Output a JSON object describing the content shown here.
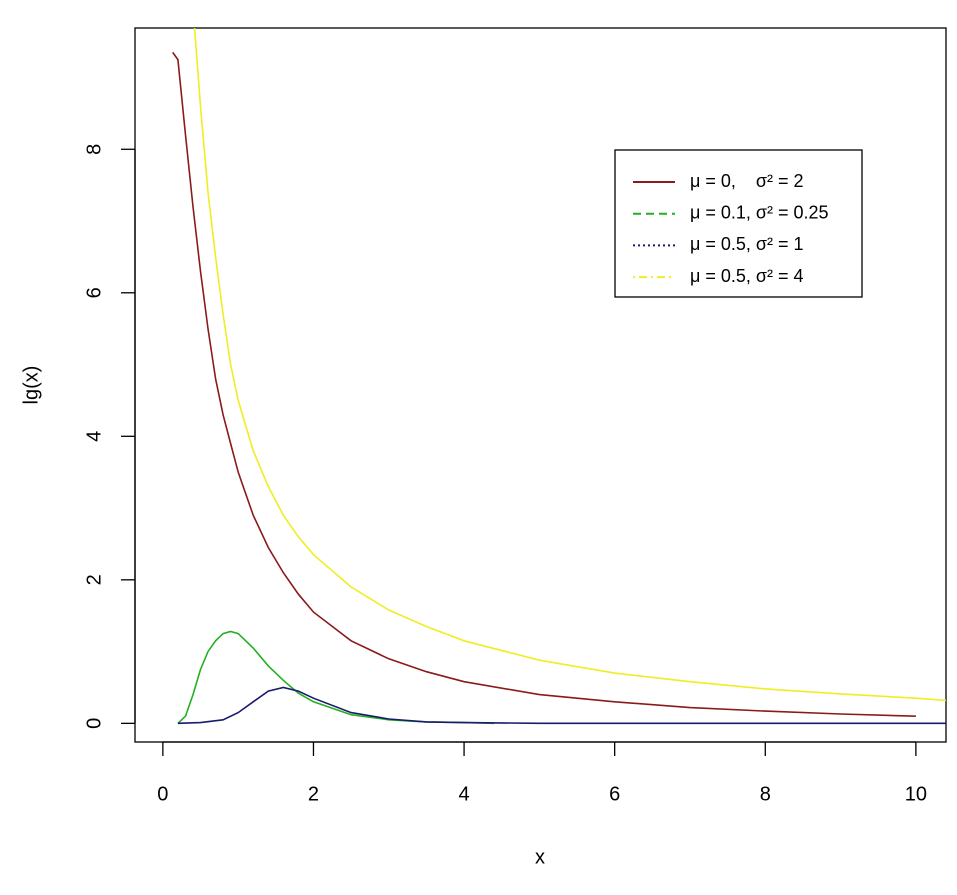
{
  "chart_data": {
    "type": "line",
    "x_label": "x",
    "y_label": "lg(x)",
    "xlim": [
      -0.37,
      10.4
    ],
    "ylim": [
      -0.26,
      9.69
    ],
    "xticks": [
      0,
      2,
      4,
      6,
      8,
      10
    ],
    "yticks": [
      0,
      2,
      4,
      6,
      8
    ],
    "grid": false,
    "series": [
      {
        "name": "μ = 0,    σ² = 2",
        "color": "#8b1a1a",
        "linestyle": "solid",
        "x": [
          0.13,
          0.2,
          0.3,
          0.4,
          0.5,
          0.6,
          0.7,
          0.8,
          0.9,
          1,
          1.2,
          1.4,
          1.6,
          1.8,
          2,
          2.5,
          3,
          3.5,
          4,
          5,
          6,
          7,
          8,
          9,
          10
        ],
        "values": [
          9.35,
          9.25,
          8.2,
          7.2,
          6.3,
          5.5,
          4.8,
          4.3,
          3.9,
          3.5,
          2.9,
          2.45,
          2.1,
          1.8,
          1.55,
          1.15,
          0.9,
          0.72,
          0.58,
          0.4,
          0.3,
          0.22,
          0.17,
          0.13,
          0.1
        ]
      },
      {
        "name": "μ = 0.1, σ² = 0.25",
        "color": "#22b022",
        "linestyle": "dashed",
        "x": [
          0.2,
          0.3,
          0.4,
          0.5,
          0.6,
          0.7,
          0.8,
          0.9,
          1,
          1.2,
          1.4,
          1.6,
          1.8,
          2,
          2.5,
          3,
          3.5,
          4,
          4.4
        ],
        "values": [
          0,
          0.1,
          0.4,
          0.75,
          1.0,
          1.15,
          1.25,
          1.28,
          1.25,
          1.05,
          0.8,
          0.6,
          0.42,
          0.3,
          0.12,
          0.05,
          0.02,
          0.01,
          0
        ]
      },
      {
        "name": "μ = 0.5, σ² = 1",
        "color": "#1a1a6e",
        "linestyle": "dotted",
        "x": [
          0.2,
          0.5,
          0.8,
          1,
          1.2,
          1.4,
          1.6,
          1.8,
          2,
          2.5,
          3,
          3.5,
          4,
          5,
          6,
          8,
          10,
          10.4
        ],
        "values": [
          0,
          0.01,
          0.05,
          0.15,
          0.3,
          0.45,
          0.5,
          0.45,
          0.35,
          0.15,
          0.06,
          0.02,
          0.01,
          0,
          0,
          0,
          0,
          0
        ]
      },
      {
        "name": "μ = 0.5, σ² = 4",
        "color": "#eeee22",
        "linestyle": "dotdash",
        "x": [
          0.42,
          0.5,
          0.6,
          0.7,
          0.8,
          0.9,
          1,
          1.2,
          1.4,
          1.6,
          1.8,
          2,
          2.5,
          3,
          3.5,
          4,
          5,
          6,
          7,
          8,
          9,
          10,
          10.4
        ],
        "values": [
          9.7,
          8.6,
          7.4,
          6.5,
          5.7,
          5.0,
          4.5,
          3.8,
          3.3,
          2.9,
          2.6,
          2.35,
          1.9,
          1.58,
          1.35,
          1.15,
          0.88,
          0.7,
          0.58,
          0.48,
          0.41,
          0.35,
          0.32
        ]
      }
    ]
  }
}
